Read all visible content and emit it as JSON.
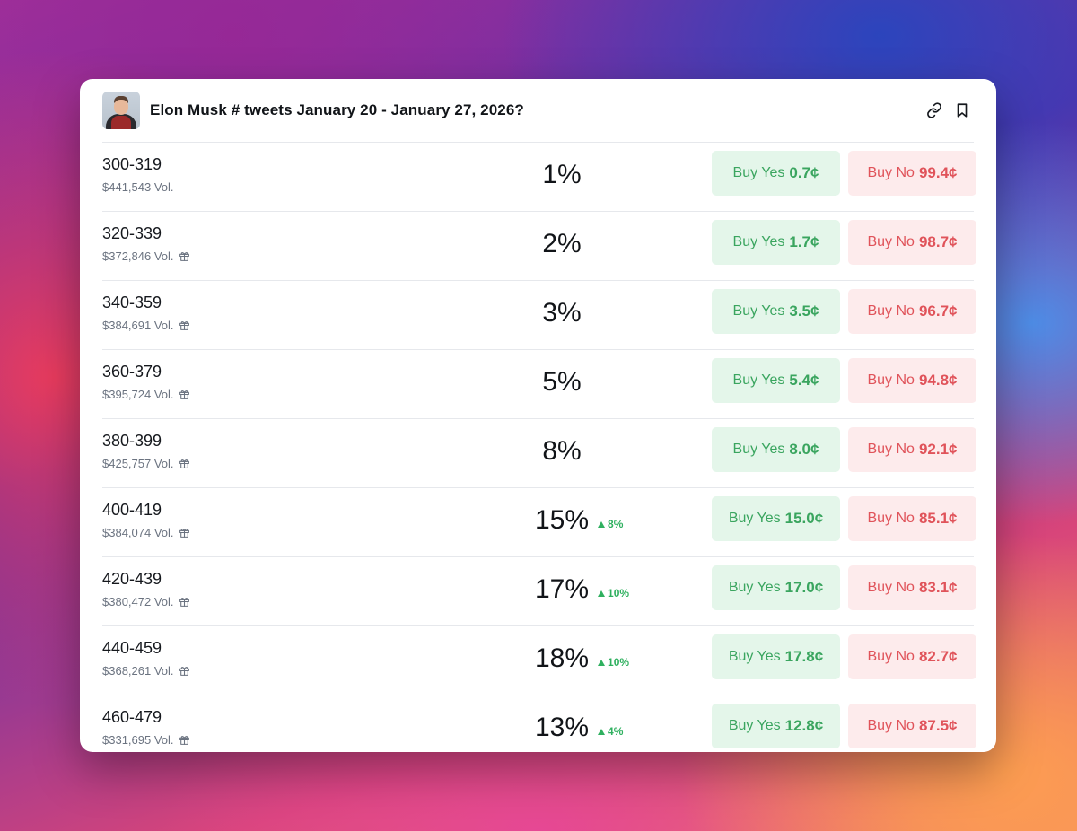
{
  "market": {
    "title": "Elon Musk # tweets January 20 - January 27, 2026?"
  },
  "header_icons": [
    "link-icon",
    "bookmark-icon"
  ],
  "colors": {
    "yes_bg": "#e4f6ea",
    "yes_text": "#3aa55f",
    "no_bg": "#fdebec",
    "no_text": "#e0535a",
    "change_up": "#2fb05f"
  },
  "buttons": {
    "yes_label": "Buy Yes",
    "no_label": "Buy No"
  },
  "outcomes": [
    {
      "range": "300-319",
      "volume": "$441,543 Vol.",
      "gift": false,
      "probability": "1%",
      "change": "",
      "yes_price": "0.7¢",
      "no_price": "99.4¢"
    },
    {
      "range": "320-339",
      "volume": "$372,846 Vol.",
      "gift": true,
      "probability": "2%",
      "change": "",
      "yes_price": "1.7¢",
      "no_price": "98.7¢"
    },
    {
      "range": "340-359",
      "volume": "$384,691 Vol.",
      "gift": true,
      "probability": "3%",
      "change": "",
      "yes_price": "3.5¢",
      "no_price": "96.7¢"
    },
    {
      "range": "360-379",
      "volume": "$395,724 Vol.",
      "gift": true,
      "probability": "5%",
      "change": "",
      "yes_price": "5.4¢",
      "no_price": "94.8¢"
    },
    {
      "range": "380-399",
      "volume": "$425,757 Vol.",
      "gift": true,
      "probability": "8%",
      "change": "",
      "yes_price": "8.0¢",
      "no_price": "92.1¢"
    },
    {
      "range": "400-419",
      "volume": "$384,074 Vol.",
      "gift": true,
      "probability": "15%",
      "change": "8%",
      "yes_price": "15.0¢",
      "no_price": "85.1¢"
    },
    {
      "range": "420-439",
      "volume": "$380,472 Vol.",
      "gift": true,
      "probability": "17%",
      "change": "10%",
      "yes_price": "17.0¢",
      "no_price": "83.1¢"
    },
    {
      "range": "440-459",
      "volume": "$368,261 Vol.",
      "gift": true,
      "probability": "18%",
      "change": "10%",
      "yes_price": "17.8¢",
      "no_price": "82.7¢"
    },
    {
      "range": "460-479",
      "volume": "$331,695 Vol.",
      "gift": true,
      "probability": "13%",
      "change": "4%",
      "yes_price": "12.8¢",
      "no_price": "87.5¢"
    }
  ]
}
